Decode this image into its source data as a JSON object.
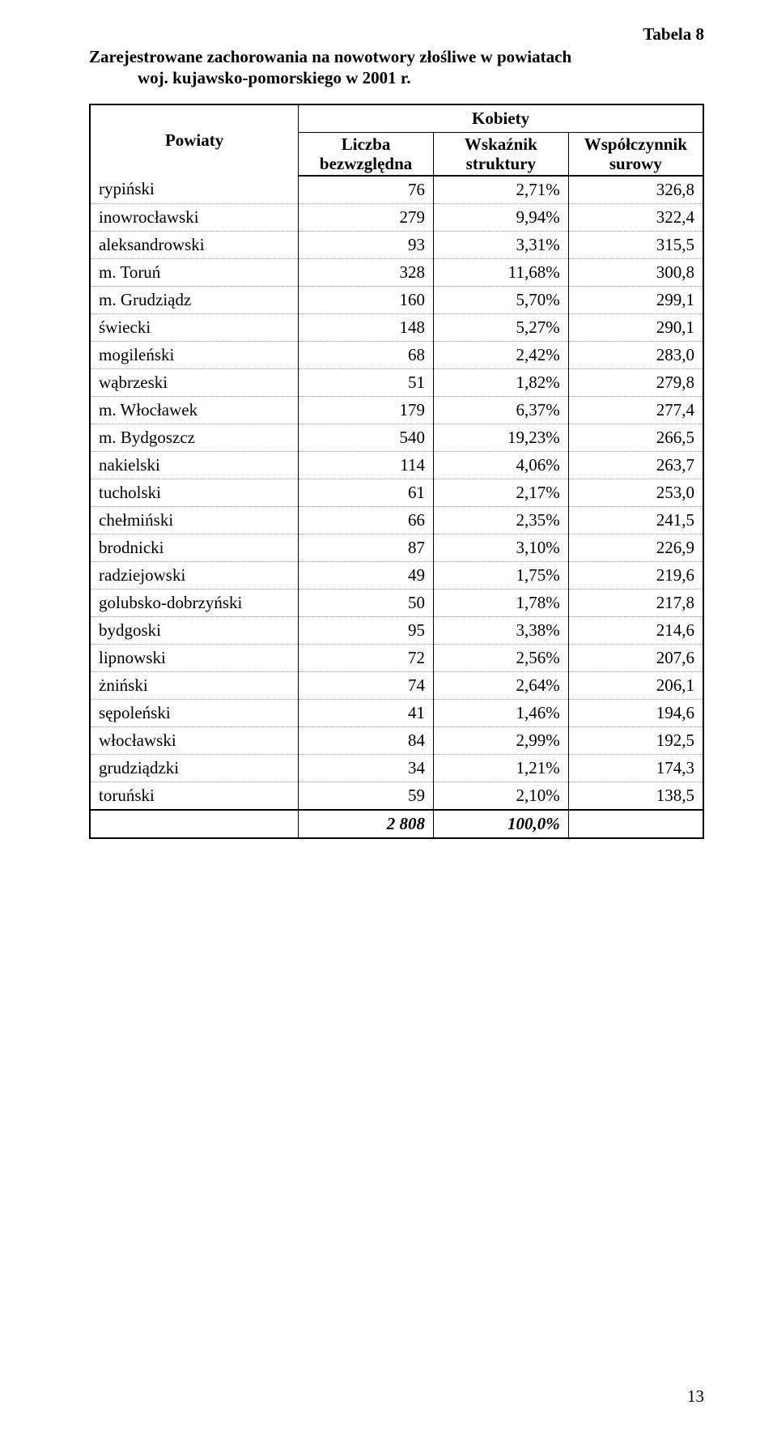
{
  "table_label": "Tabela 8",
  "title_line1": "Zarejestrowane zachorowania na nowotwory złośliwe w powiatach",
  "title_line2": "woj. kujawsko-pomorskiego w 2001 r.",
  "header": {
    "powiaty": "Powiaty",
    "kobiety": "Kobiety",
    "col1_line1": "Liczba",
    "col1_line2": "bezwzględna",
    "col2_line1": "Wskaźnik",
    "col2_line2": "struktury",
    "col3_line1": "Współczynnik",
    "col3_line2": "surowy"
  },
  "rows": [
    {
      "name": "rypiński",
      "count": "76",
      "pct": "2,71%",
      "coeff": "326,8"
    },
    {
      "name": "inowrocławski",
      "count": "279",
      "pct": "9,94%",
      "coeff": "322,4"
    },
    {
      "name": "aleksandrowski",
      "count": "93",
      "pct": "3,31%",
      "coeff": "315,5"
    },
    {
      "name": "m. Toruń",
      "count": "328",
      "pct": "11,68%",
      "coeff": "300,8"
    },
    {
      "name": "m. Grudziądz",
      "count": "160",
      "pct": "5,70%",
      "coeff": "299,1"
    },
    {
      "name": "świecki",
      "count": "148",
      "pct": "5,27%",
      "coeff": "290,1"
    },
    {
      "name": "mogileński",
      "count": "68",
      "pct": "2,42%",
      "coeff": "283,0"
    },
    {
      "name": "wąbrzeski",
      "count": "51",
      "pct": "1,82%",
      "coeff": "279,8"
    },
    {
      "name": "m. Włocławek",
      "count": "179",
      "pct": "6,37%",
      "coeff": "277,4"
    },
    {
      "name": "m. Bydgoszcz",
      "count": "540",
      "pct": "19,23%",
      "coeff": "266,5"
    },
    {
      "name": "nakielski",
      "count": "114",
      "pct": "4,06%",
      "coeff": "263,7"
    },
    {
      "name": "tucholski",
      "count": "61",
      "pct": "2,17%",
      "coeff": "253,0"
    },
    {
      "name": "chełmiński",
      "count": "66",
      "pct": "2,35%",
      "coeff": "241,5"
    },
    {
      "name": "brodnicki",
      "count": "87",
      "pct": "3,10%",
      "coeff": "226,9"
    },
    {
      "name": "radziejowski",
      "count": "49",
      "pct": "1,75%",
      "coeff": "219,6"
    },
    {
      "name": "golubsko-dobrzyński",
      "count": "50",
      "pct": "1,78%",
      "coeff": "217,8"
    },
    {
      "name": "bydgoski",
      "count": "95",
      "pct": "3,38%",
      "coeff": "214,6"
    },
    {
      "name": "lipnowski",
      "count": "72",
      "pct": "2,56%",
      "coeff": "207,6"
    },
    {
      "name": "żniński",
      "count": "74",
      "pct": "2,64%",
      "coeff": "206,1"
    },
    {
      "name": "sępoleński",
      "count": "41",
      "pct": "1,46%",
      "coeff": "194,6"
    },
    {
      "name": "włocławski",
      "count": "84",
      "pct": "2,99%",
      "coeff": "192,5"
    },
    {
      "name": "grudziądzki",
      "count": "34",
      "pct": "1,21%",
      "coeff": "174,3"
    },
    {
      "name": "toruński",
      "count": "59",
      "pct": "2,10%",
      "coeff": "138,5"
    }
  ],
  "total": {
    "count": "2 808",
    "pct": "100,0%",
    "coeff": ""
  },
  "page_number": "13"
}
